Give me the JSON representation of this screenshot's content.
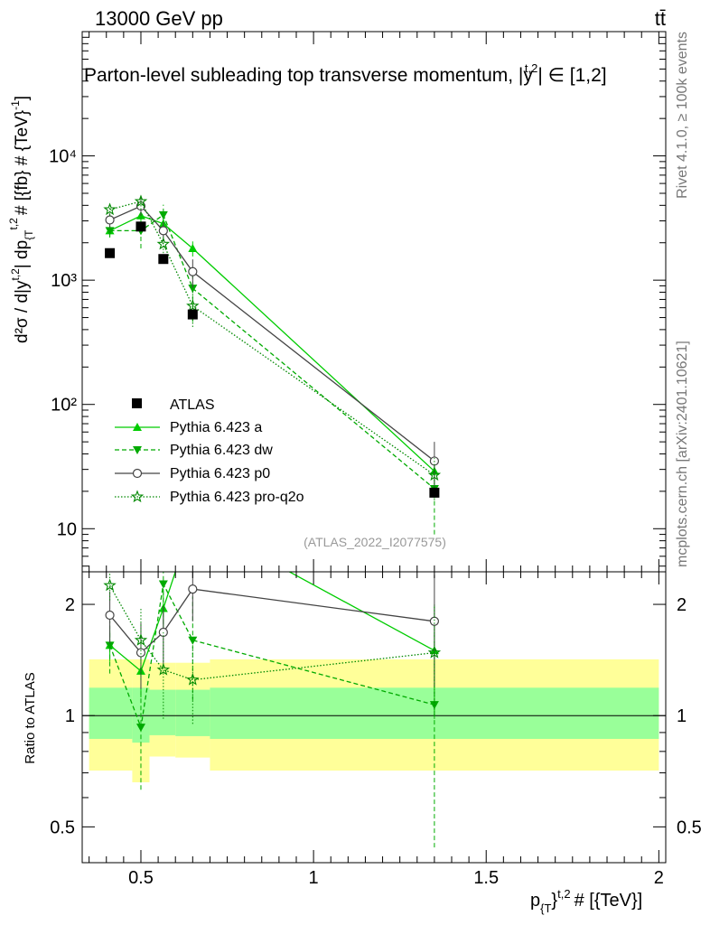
{
  "header": {
    "left_label": "13000 GeV pp",
    "right_label": "tt̄"
  },
  "side_labels": {
    "rivet": "Rivet 4.1.0, ≥ 100k events",
    "mcplots": "mcplots.cern.ch [arXiv:2401.10621]"
  },
  "colors": {
    "atlas": "#000000",
    "a": "#00cc00",
    "dw": "#00aa00",
    "p0": "#444444",
    "q2o": "#008800",
    "band_outer": "#ffff99",
    "band_inner": "#99ff99"
  },
  "chart_data": [
    {
      "type": "line",
      "title": "Parton-level subleading top transverse momentum, |y^{t,2}| ∈ [1,2]",
      "title_parts": {
        "prefix": "Parton-level subleading top transverse momentum, |",
        "y": "y",
        "sup": "t,2",
        "suffix": "| ∈ [1,2]"
      },
      "ylabel": "d²σ / d|y^{t,2}| dp_{T}^{t,2} # [{fb} # {TeV}^{-1}]",
      "ylabel_text": "d²σ / d|y",
      "ylabel_sup1": "t,2",
      "ylabel_mid": "| dp",
      "ylabel_sub": "{T",
      "ylabel_sup2": "t,2",
      "ylabel_end": "# [{fb} # {TeV}",
      "ylabel_sup3": "-1",
      "ylabel_close": "]",
      "yscale": "log",
      "xlim": [
        0.33,
        2.02
      ],
      "ylim": [
        4.5,
        100000
      ],
      "y_ticks": [
        {
          "value": 10,
          "label": "10"
        },
        {
          "value": 100,
          "label": "10²"
        },
        {
          "value": 1000,
          "label": "10³"
        },
        {
          "value": 10000,
          "label": "10⁴"
        }
      ],
      "watermark": "(ATLAS_2022_I2077575)",
      "series": [
        {
          "name": "ATLAS",
          "marker": "square",
          "style": "none",
          "x": [
            0.41,
            0.5,
            0.565,
            0.65,
            1.35
          ],
          "y": [
            1650,
            2700,
            1480,
            530,
            19.5
          ],
          "err": [
            0,
            0,
            0,
            0,
            0
          ]
        },
        {
          "name": "Pythia 6.423 a",
          "marker": "triangle-up",
          "style": "solid",
          "x": [
            0.41,
            0.5,
            0.565,
            0.65,
            1.35
          ],
          "y": [
            2500,
            3300,
            2850,
            1800,
            29
          ],
          "err": [
            250,
            400,
            350,
            250,
            8
          ]
        },
        {
          "name": "Pythia 6.423 dw",
          "marker": "triangle-down",
          "style": "dashed",
          "x": [
            0.41,
            0.5,
            0.565,
            0.65,
            1.35
          ],
          "y": [
            2500,
            2500,
            3350,
            860,
            21
          ],
          "err": [
            300,
            700,
            700,
            400,
            12
          ]
        },
        {
          "name": "Pythia 6.423 p0",
          "marker": "circle-open",
          "style": "solid",
          "x": [
            0.41,
            0.5,
            0.565,
            0.65,
            1.35
          ],
          "y": [
            3050,
            3950,
            2500,
            1170,
            35
          ],
          "err": [
            400,
            650,
            450,
            300,
            15
          ]
        },
        {
          "name": "Pythia 6.423 pro-q2o",
          "marker": "star-open",
          "style": "dotted",
          "x": [
            0.41,
            0.5,
            0.565,
            0.65,
            1.35
          ],
          "y": [
            3700,
            4300,
            1950,
            620,
            27
          ],
          "err": [
            400,
            600,
            300,
            200,
            10
          ]
        }
      ]
    },
    {
      "type": "line",
      "title": "",
      "ylabel": "Ratio to ATLAS",
      "xlabel": "p_{T}^{t,2} # [{TeV}]",
      "xlabel_p": "p",
      "xlabel_sub": "{T",
      "xlabel_brace": "}",
      "xlabel_sup": "t,2",
      "xlabel_end": "# [{TeV}]",
      "yscale": "log",
      "xlim": [
        0.33,
        2.02
      ],
      "ylim": [
        0.4,
        2.45
      ],
      "x_ticks": [
        {
          "value": 0.5,
          "label": "0.5"
        },
        {
          "value": 1.0,
          "label": "1"
        },
        {
          "value": 1.5,
          "label": "1.5"
        },
        {
          "value": 2.0,
          "label": "2"
        }
      ],
      "y_ticks": [
        {
          "value": 0.5,
          "label": "0.5"
        },
        {
          "value": 1,
          "label": "1"
        },
        {
          "value": 2,
          "label": "2"
        }
      ],
      "bands": [
        {
          "x0": 0.35,
          "x1": 0.475,
          "outer": [
            0.71,
            1.42
          ],
          "inner": [
            0.865,
            1.19
          ]
        },
        {
          "x0": 0.475,
          "x1": 0.525,
          "outer": [
            0.66,
            1.42
          ],
          "inner": [
            0.845,
            1.19
          ]
        },
        {
          "x0": 0.525,
          "x1": 0.6,
          "outer": [
            0.775,
            1.39
          ],
          "inner": [
            0.885,
            1.175
          ]
        },
        {
          "x0": 0.6,
          "x1": 0.7,
          "outer": [
            0.77,
            1.39
          ],
          "inner": [
            0.88,
            1.175
          ]
        },
        {
          "x0": 0.7,
          "x1": 2.0,
          "outer": [
            0.71,
            1.42
          ],
          "inner": [
            0.865,
            1.19
          ]
        }
      ],
      "series": [
        {
          "name": "Pythia 6.423 a",
          "marker": "triangle-up",
          "style": "solid",
          "x": [
            0.41,
            0.5,
            0.565,
            0.65,
            1.35
          ],
          "y": [
            1.55,
            1.32,
            1.95,
            3.4,
            1.5
          ],
          "err": [
            0.15,
            0.2,
            0.25,
            0.4,
            0.5
          ]
        },
        {
          "name": "Pythia 6.423 dw",
          "marker": "triangle-down",
          "style": "dashed",
          "x": [
            0.41,
            0.5,
            0.565,
            0.65,
            1.35
          ],
          "y": [
            1.55,
            0.93,
            2.27,
            1.6,
            1.07
          ],
          "err": [
            0.25,
            0.3,
            0.5,
            0.5,
            0.63
          ]
        },
        {
          "name": "Pythia 6.423 p0",
          "marker": "circle-open",
          "style": "solid",
          "x": [
            0.41,
            0.5,
            0.565,
            0.65,
            1.35
          ],
          "y": [
            1.87,
            1.48,
            1.68,
            2.2,
            1.8
          ],
          "err": [
            0.3,
            0.3,
            0.3,
            0.4,
            0.6
          ]
        },
        {
          "name": "Pythia 6.423 pro-q2o",
          "marker": "star-open",
          "style": "dotted",
          "x": [
            0.41,
            0.5,
            0.565,
            0.65,
            1.35
          ],
          "y": [
            2.25,
            1.6,
            1.33,
            1.25,
            1.48
          ],
          "err": [
            0.2,
            0.35,
            0.35,
            0.3,
            0.5
          ]
        }
      ]
    }
  ]
}
